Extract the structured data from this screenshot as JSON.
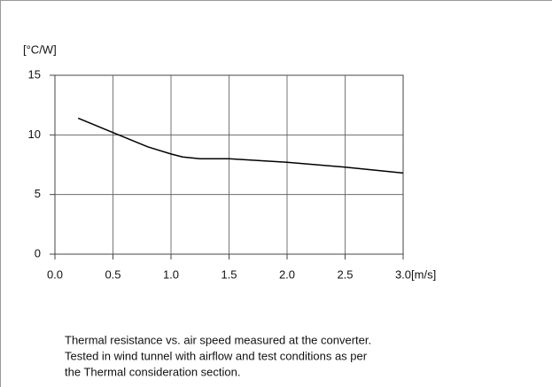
{
  "chart_data": {
    "type": "line",
    "ylabel": "[°C/W]",
    "xlabel": "[m/s]",
    "x": [
      0.2,
      0.5,
      0.8,
      1.0,
      1.1,
      1.25,
      1.5,
      2.0,
      2.5,
      3.0
    ],
    "series": [
      {
        "color": "#000000",
        "values": [
          11.4,
          10.2,
          9.0,
          8.4,
          8.15,
          8.0,
          8.0,
          7.7,
          7.3,
          6.8
        ]
      }
    ],
    "xlim": [
      0,
      3
    ],
    "xticks": [
      {
        "value": 0,
        "label": "0.0"
      },
      {
        "value": 0.5,
        "label": "0.5"
      },
      {
        "value": 1,
        "label": "1.0"
      },
      {
        "value": 1.5,
        "label": "1.5"
      },
      {
        "value": 2,
        "label": "2.0"
      },
      {
        "value": 2.5,
        "label": "2.5"
      },
      {
        "value": 3,
        "label": "3.0"
      }
    ],
    "ylim": [
      0,
      15
    ],
    "yticks": [
      0,
      5,
      10,
      15
    ],
    "grid": true,
    "caption": [
      "Thermal resistance vs. air speed measured at the converter.",
      "Tested in wind tunnel with airflow and test conditions as per",
      "the Thermal consideration section."
    ]
  }
}
